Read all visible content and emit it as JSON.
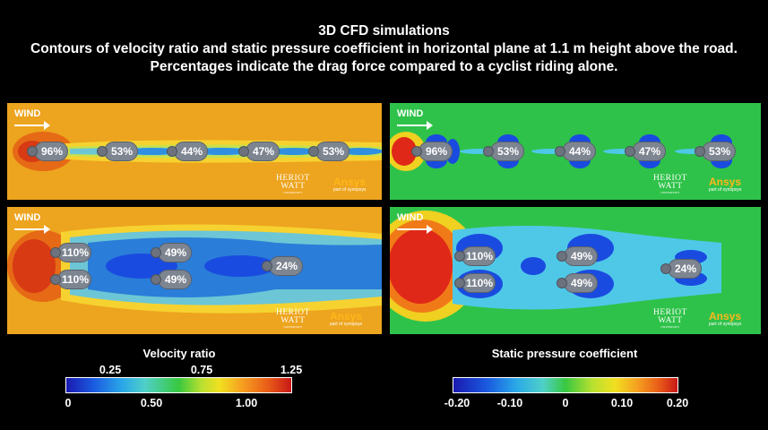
{
  "title": {
    "line1": "3D CFD simulations",
    "line2": "Contours of velocity ratio and static pressure coefficient in horizontal plane at 1.1 m height above the road.",
    "line3": "Percentages indicate the drag force compared to a cyclist riding alone."
  },
  "wind_label": "WIND",
  "logos": {
    "heriot_watt": [
      "HERIOT",
      "WATT"
    ],
    "heriot_watt_sub": "UNIVERSITY",
    "ansys": "Ansys",
    "ansys_sub": "part of synopsys"
  },
  "single_file": [
    "96%",
    "53%",
    "44%",
    "47%",
    "53%"
  ],
  "two_abreast": {
    "top_row": [
      "110%",
      "49%"
    ],
    "bottom_row": [
      "110%",
      "49%"
    ],
    "last_rider": "24%"
  },
  "legends": {
    "velocity": {
      "title": "Velocity ratio",
      "upper_ticks": [
        "0.25",
        "0.75",
        "1.25"
      ],
      "lower_ticks": [
        "0",
        "0.50",
        "1.00"
      ]
    },
    "pressure": {
      "title": "Static pressure coefficient",
      "ticks": [
        "-0.20",
        "-0.10",
        "0",
        "0.10",
        "0.20"
      ]
    }
  },
  "colors": {
    "velocity_field": "#f0a01c",
    "pressure_field": "#2fc24a",
    "wake_blue": "#2a7dd8",
    "stagnation_red": "#e02818"
  }
}
